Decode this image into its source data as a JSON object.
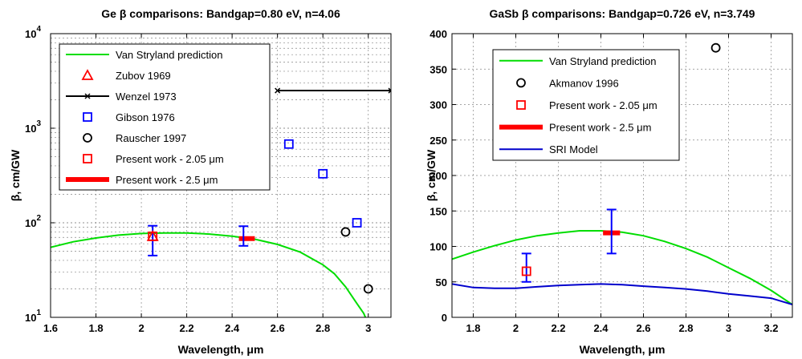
{
  "chart_data": [
    {
      "type": "line",
      "title": "Ge β comparisons: Bandgap=0.80 eV, n=4.06",
      "xlabel": "Wavelength, μm",
      "ylabel": "β, cm/GW",
      "xlim": [
        1.6,
        3.1
      ],
      "ylim": [
        10,
        10000
      ],
      "yscale": "log",
      "grid": true,
      "legend_position": "top-left",
      "x_ticks": [
        1.6,
        1.8,
        2.0,
        2.2,
        2.4,
        2.6,
        2.8,
        3.0
      ],
      "x_tick_labels": [
        "1.6",
        "1.8",
        "2",
        "2.2",
        "2.4",
        "2.6",
        "2.8",
        "3"
      ],
      "y_tick_labels": [
        {
          "base": "10",
          "exp": "1",
          "value": 10
        },
        {
          "base": "10",
          "exp": "2",
          "value": 100
        },
        {
          "base": "10",
          "exp": "3",
          "value": 1000
        },
        {
          "base": "10",
          "exp": "4",
          "value": 10000
        }
      ],
      "series": [
        {
          "name": "Van Stryland prediction",
          "kind": "line",
          "color": "#00dd00",
          "x": [
            1.6,
            1.7,
            1.8,
            1.9,
            2.0,
            2.1,
            2.2,
            2.3,
            2.4,
            2.5,
            2.6,
            2.7,
            2.8,
            2.85,
            2.9,
            2.95,
            2.98,
            3.0
          ],
          "y": [
            55,
            63,
            69,
            74,
            77,
            78,
            78,
            76,
            72,
            67,
            59,
            49,
            36,
            29,
            21,
            14,
            11,
            8.5
          ]
        },
        {
          "name": "Zubov 1969",
          "kind": "marker",
          "marker": "triangle",
          "color": "#ff0000",
          "x": [
            2.05
          ],
          "y": [
            72
          ]
        },
        {
          "name": "Wenzel 1973",
          "kind": "line-marker",
          "marker": "x",
          "color": "#000000",
          "x": [
            2.6,
            3.1
          ],
          "y": [
            2500,
            2500
          ]
        },
        {
          "name": "Gibson 1976",
          "kind": "marker",
          "marker": "square",
          "color": "#0000ff",
          "x": [
            2.65,
            2.8,
            2.95
          ],
          "y": [
            680,
            330,
            100
          ]
        },
        {
          "name": "Rauscher 1997",
          "kind": "marker",
          "marker": "circle",
          "color": "#000000",
          "x": [
            2.9,
            3.0
          ],
          "y": [
            80,
            20
          ]
        },
        {
          "name": "Present work - 2.05 μm",
          "kind": "marker",
          "marker": "square",
          "color": "#ff0000",
          "x": [
            2.05
          ],
          "y": [
            72
          ]
        },
        {
          "name": "Present work - 2.5 μm",
          "kind": "bar-segment",
          "color": "#ff0000",
          "x": [
            2.43,
            2.5
          ],
          "y": [
            68,
            68
          ]
        }
      ],
      "error_bars": [
        {
          "x": 2.05,
          "low": 45,
          "high": 93,
          "color": "#0000ff"
        },
        {
          "x": 2.45,
          "low": 57,
          "high": 92,
          "color": "#0000ff"
        }
      ]
    },
    {
      "type": "line",
      "title": "GaSb β comparisons: Bandgap=0.726 eV, n=3.749",
      "xlabel": "Wavelength, μm",
      "ylabel": "β, cm/GW",
      "xlim": [
        1.7,
        3.3
      ],
      "ylim": [
        0,
        400
      ],
      "yscale": "linear",
      "grid": true,
      "legend_position": "top-left",
      "x_ticks": [
        1.8,
        2.0,
        2.2,
        2.4,
        2.6,
        2.8,
        3.0,
        3.2
      ],
      "x_tick_labels": [
        "1.8",
        "2",
        "2.2",
        "2.4",
        "2.6",
        "2.8",
        "3",
        "3.2"
      ],
      "y_ticks": [
        0,
        50,
        100,
        150,
        200,
        250,
        300,
        350,
        400
      ],
      "y_tick_labels": [
        "0",
        "50",
        "100",
        "150",
        "200",
        "250",
        "300",
        "350",
        "400"
      ],
      "series": [
        {
          "name": "Van Stryland prediction",
          "kind": "line",
          "color": "#00dd00",
          "x": [
            1.7,
            1.8,
            1.9,
            2.0,
            2.1,
            2.2,
            2.3,
            2.4,
            2.5,
            2.6,
            2.7,
            2.8,
            2.9,
            3.0,
            3.1,
            3.2,
            3.3
          ],
          "y": [
            82,
            92,
            101,
            109,
            115,
            119,
            122,
            122,
            120,
            115,
            107,
            97,
            85,
            70,
            55,
            38,
            18
          ]
        },
        {
          "name": "Akmanov 1996",
          "kind": "marker",
          "marker": "circle",
          "color": "#000000",
          "x": [
            2.94
          ],
          "y": [
            380
          ]
        },
        {
          "name": "Present work - 2.05 μm",
          "kind": "marker",
          "marker": "square",
          "color": "#ff0000",
          "x": [
            2.05
          ],
          "y": [
            65
          ]
        },
        {
          "name": "Present work - 2.5 μm",
          "kind": "bar-segment",
          "color": "#ff0000",
          "x": [
            2.41,
            2.49
          ],
          "y": [
            119,
            119
          ]
        },
        {
          "name": "SRI Model",
          "kind": "line",
          "color": "#0000cc",
          "x": [
            1.7,
            1.8,
            1.9,
            2.0,
            2.1,
            2.2,
            2.3,
            2.4,
            2.5,
            2.6,
            2.7,
            2.8,
            2.9,
            3.0,
            3.1,
            3.2,
            3.3
          ],
          "y": [
            47,
            42,
            41,
            41,
            43,
            45,
            46,
            47,
            46,
            44,
            42,
            40,
            37,
            33,
            30,
            27,
            18
          ]
        }
      ],
      "error_bars": [
        {
          "x": 2.05,
          "low": 50,
          "high": 90,
          "color": "#0000ff"
        },
        {
          "x": 2.45,
          "low": 90,
          "high": 152,
          "color": "#0000ff"
        }
      ]
    }
  ]
}
